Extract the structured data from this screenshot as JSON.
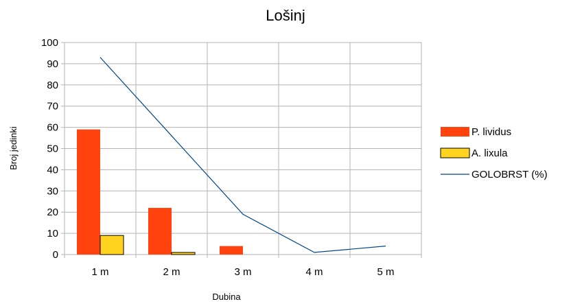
{
  "chart_data": {
    "type": "bar",
    "title": "Lošinj",
    "xlabel": "Dubina",
    "ylabel": "Broj jedinki",
    "categories": [
      "1 m",
      "2 m",
      "3 m",
      "4 m",
      "5 m"
    ],
    "ylim": [
      0,
      100
    ],
    "yticks": [
      0,
      10,
      20,
      30,
      40,
      50,
      60,
      70,
      80,
      90,
      100
    ],
    "grid": true,
    "legend_position": "right",
    "series": [
      {
        "name": "P. lividus",
        "kind": "bar",
        "color": "#ff420e",
        "values": [
          59,
          22,
          4,
          0,
          0
        ]
      },
      {
        "name": "A. lixula",
        "kind": "bar",
        "color": "#ffd320",
        "values": [
          9,
          1,
          0,
          0,
          0
        ]
      },
      {
        "name": "GOLOBRST (%)",
        "kind": "line",
        "color": "#004586",
        "values": [
          93,
          56,
          19,
          1,
          4
        ]
      }
    ]
  }
}
